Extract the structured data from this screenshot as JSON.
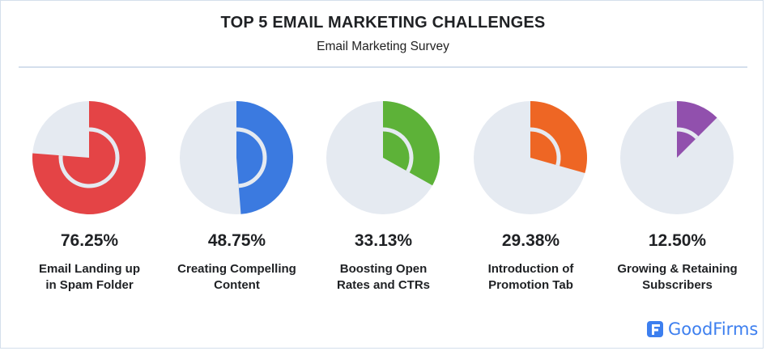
{
  "header": {
    "title": "TOP 5 EMAIL MARKETING CHALLENGES",
    "subtitle": "Email Marketing Survey"
  },
  "items": [
    {
      "value_label": "76.25%",
      "label_line1": "Email Landing up",
      "label_line2": "in Spam Folder",
      "color": "#e44446"
    },
    {
      "value_label": "48.75%",
      "label_line1": "Creating Compelling",
      "label_line2": "Content",
      "color": "#3b7ae0"
    },
    {
      "value_label": "33.13%",
      "label_line1": "Boosting Open",
      "label_line2": "Rates and CTRs",
      "color": "#5db238"
    },
    {
      "value_label": "29.38%",
      "label_line1": "Introduction of",
      "label_line2": "Promotion Tab",
      "color": "#ee6624"
    },
    {
      "value_label": "12.50%",
      "label_line1": "Growing & Retaining",
      "label_line2": "Subscribers",
      "color": "#9150ad"
    }
  ],
  "colors": {
    "track": "#e5eaf1",
    "border": "#d4dfec",
    "brand": "#3d7fef"
  },
  "brand": {
    "name": "GoodFirms"
  },
  "chart_data": {
    "type": "pie",
    "title": "TOP 5 EMAIL MARKETING CHALLENGES",
    "subtitle": "Email Marketing Survey",
    "categories": [
      "Email Landing up in Spam Folder",
      "Creating Compelling Content",
      "Boosting Open Rates and CTRs",
      "Introduction of Promotion Tab",
      "Growing & Retaining Subscribers"
    ],
    "values": [
      76.25,
      48.75,
      33.13,
      29.38,
      12.5
    ],
    "unit": "%",
    "ylim": [
      0,
      100
    ],
    "legend": "none",
    "grid": false
  }
}
